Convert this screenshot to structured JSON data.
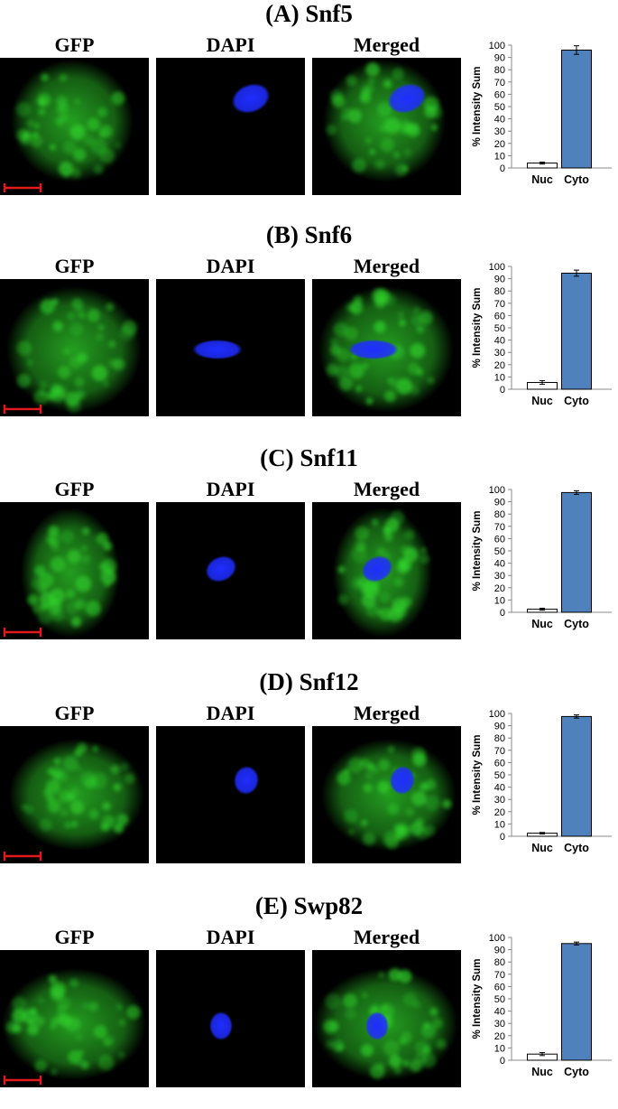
{
  "figure": {
    "column_labels": [
      "GFP",
      "DAPI",
      "Merged"
    ],
    "colors": {
      "gfp": "#2fd12a",
      "dapi": "#1f2dff",
      "scale_bar": "#e0191c",
      "cyto_bar": "#4f81bd",
      "nuc_bar": "#ffffff"
    }
  },
  "panels": [
    {
      "title": "(A) Snf5",
      "chart_data": {
        "type": "bar",
        "categories": [
          "Nuc",
          "Cyto"
        ],
        "values": [
          4,
          96
        ],
        "error": [
          0.8,
          3.5
        ],
        "ylabel": "% Intensity Sum",
        "ylim": [
          0,
          100
        ],
        "yticks": [
          0,
          10,
          20,
          30,
          40,
          50,
          60,
          70,
          80,
          90,
          100
        ]
      }
    },
    {
      "title": "(B) Snf6",
      "chart_data": {
        "type": "bar",
        "categories": [
          "Nuc",
          "Cyto"
        ],
        "values": [
          5.5,
          94.5
        ],
        "error": [
          1.5,
          2.5
        ],
        "ylabel": "% Intensity Sum",
        "ylim": [
          0,
          100
        ],
        "yticks": [
          0,
          10,
          20,
          30,
          40,
          50,
          60,
          70,
          80,
          90,
          100
        ]
      }
    },
    {
      "title": "(C) Snf11",
      "chart_data": {
        "type": "bar",
        "categories": [
          "Nuc",
          "Cyto"
        ],
        "values": [
          2.5,
          97.5
        ],
        "error": [
          0.8,
          1.5
        ],
        "ylabel": "% Intensity Sum",
        "ylim": [
          0,
          100
        ],
        "yticks": [
          0,
          10,
          20,
          30,
          40,
          50,
          60,
          70,
          80,
          90,
          100
        ]
      }
    },
    {
      "title": "(D) Snf12",
      "chart_data": {
        "type": "bar",
        "categories": [
          "Nuc",
          "Cyto"
        ],
        "values": [
          2.5,
          97.5
        ],
        "error": [
          0.6,
          1.3
        ],
        "ylabel": "% Intensity Sum",
        "ylim": [
          0,
          100
        ],
        "yticks": [
          0,
          10,
          20,
          30,
          40,
          50,
          60,
          70,
          80,
          90,
          100
        ]
      }
    },
    {
      "title": "(E) Swp82",
      "chart_data": {
        "type": "bar",
        "categories": [
          "Nuc",
          "Cyto"
        ],
        "values": [
          5,
          95
        ],
        "error": [
          1.2,
          1.2
        ],
        "ylabel": "% Intensity Sum",
        "ylim": [
          0,
          100
        ],
        "yticks": [
          0,
          10,
          20,
          30,
          40,
          50,
          60,
          70,
          80,
          90,
          100
        ]
      }
    }
  ]
}
